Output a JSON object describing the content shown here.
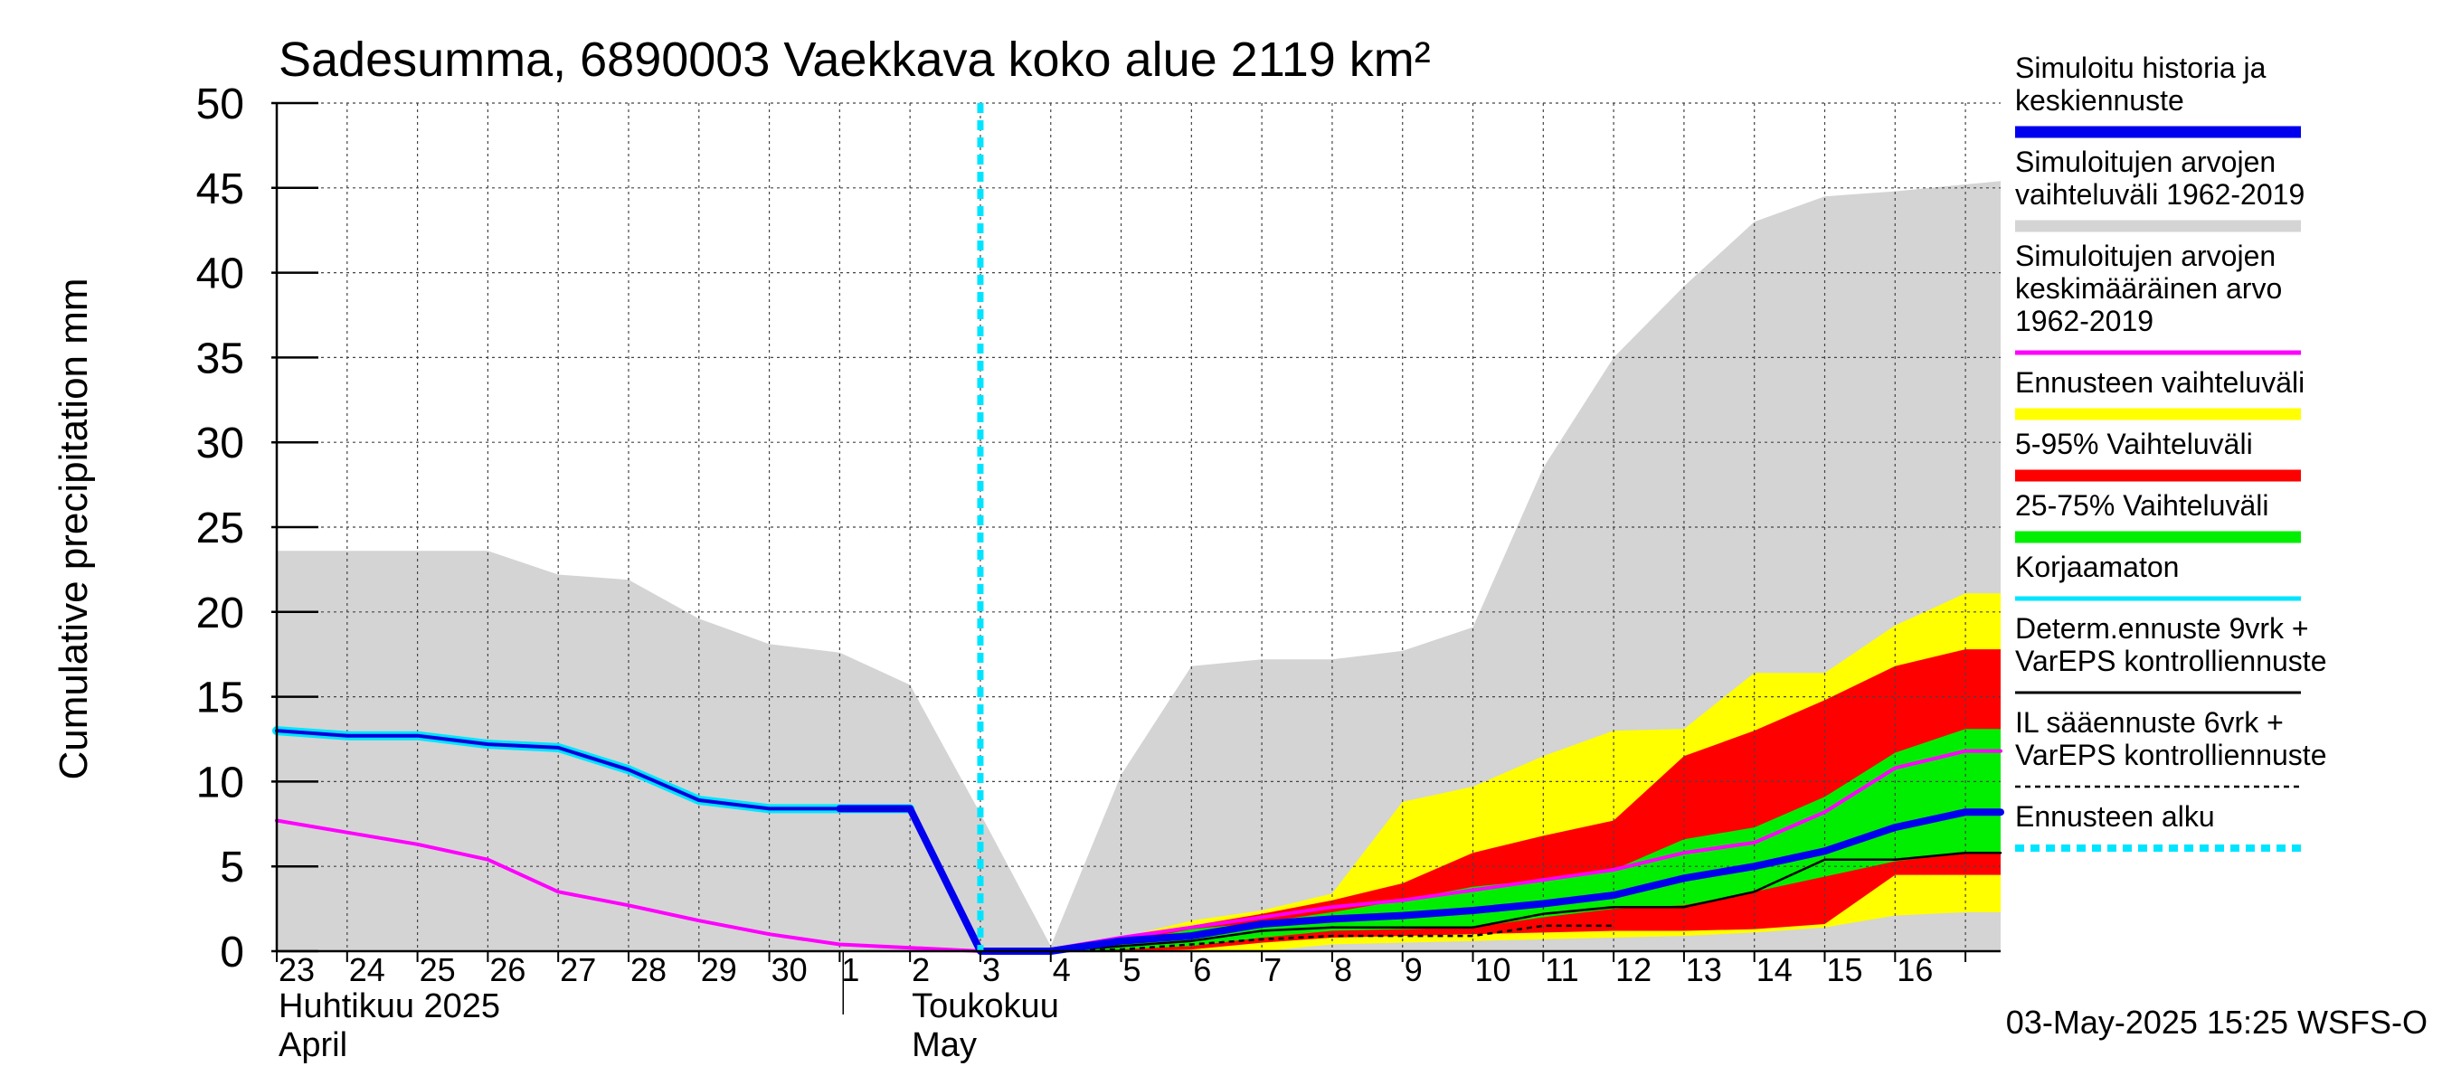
{
  "chart_data": {
    "type": "area",
    "title": "Sadesumma, 6890003 Vaekkava koko alue 2119 km²",
    "ylabel": "Cumulative precipitation   mm",
    "ylim": [
      0,
      50
    ],
    "yticks": [
      0,
      5,
      10,
      15,
      20,
      25,
      30,
      35,
      40,
      45,
      50
    ],
    "xlim": [
      0,
      24.5
    ],
    "x_tick_labels": [
      "23",
      "24",
      "25",
      "26",
      "27",
      "28",
      "29",
      "30",
      "1",
      "2",
      "3",
      "4",
      "5",
      "6",
      "7",
      "8",
      "9",
      "10",
      "11",
      "12",
      "13",
      "14",
      "15",
      "16"
    ],
    "month_labels": [
      {
        "text": "Huhtikuu  2025",
        "x": 0
      },
      {
        "text": "April",
        "x": 0
      },
      {
        "text": "Toukokuu",
        "x": 9
      },
      {
        "text": "May",
        "x": 9
      }
    ],
    "forecast_start_x": 10,
    "grid": true,
    "legend_position": "right",
    "footer": "03-May-2025 15:25 WSFS-O",
    "series": [
      {
        "name": "Simuloitujen arvojen vaihteluväli 1962-2019",
        "kind": "band",
        "color": "#d4d4d4",
        "x": [
          0,
          2,
          3,
          4,
          5,
          6,
          7,
          8,
          9,
          10,
          11,
          12,
          13,
          14,
          15,
          16,
          17,
          18,
          19,
          20,
          21,
          22,
          23,
          24,
          24.5
        ],
        "upper": [
          23.6,
          23.6,
          23.6,
          22.2,
          21.9,
          19.6,
          18.1,
          17.6,
          15.7,
          8.1,
          0.3,
          10.4,
          16.8,
          17.2,
          17.2,
          17.7,
          19.1,
          28.5,
          35.0,
          39.2,
          43.0,
          44.5,
          44.8,
          45.2,
          45.4
        ],
        "lower": [
          0,
          0,
          0,
          0,
          0,
          0,
          0,
          0,
          0,
          0,
          0,
          0,
          0,
          0,
          0,
          0,
          0,
          0,
          0,
          0,
          0,
          0,
          0,
          0,
          0
        ]
      },
      {
        "name": "Ennusteen vaihteluväli",
        "kind": "band",
        "color": "#ffff00",
        "x": [
          10,
          11,
          12,
          13,
          14,
          15,
          16,
          17,
          18,
          19,
          20,
          21,
          22,
          23,
          24,
          24.5
        ],
        "upper": [
          0,
          0.2,
          0.8,
          1.8,
          2.4,
          3.4,
          8.8,
          9.7,
          11.5,
          13.0,
          13.1,
          16.4,
          16.4,
          19.2,
          21.1,
          21.1
        ],
        "lower": [
          0,
          0,
          0,
          0,
          0,
          0.4,
          0.5,
          0.6,
          0.7,
          0.8,
          0.9,
          1.1,
          1.4,
          2.1,
          2.3,
          2.3
        ]
      },
      {
        "name": "5-95% Vaihteluväli",
        "kind": "band",
        "color": "#ff0000",
        "x": [
          10,
          11,
          12,
          13,
          14,
          15,
          16,
          17,
          18,
          19,
          20,
          21,
          22,
          23,
          24,
          24.5
        ],
        "upper": [
          0,
          0.1,
          0.6,
          1.5,
          2.2,
          3.0,
          4.0,
          5.8,
          6.8,
          7.7,
          11.5,
          13.0,
          14.8,
          16.8,
          17.8,
          17.8
        ],
        "lower": [
          0,
          0,
          0,
          0.1,
          0.5,
          0.8,
          0.9,
          1.0,
          1.1,
          1.2,
          1.2,
          1.3,
          1.6,
          4.5,
          4.5,
          4.5
        ]
      },
      {
        "name": "25-75% Vaihteluväli",
        "kind": "band",
        "color": "#00ee00",
        "x": [
          10,
          11,
          12,
          13,
          14,
          15,
          16,
          17,
          18,
          19,
          20,
          21,
          22,
          23,
          24,
          24.5
        ],
        "upper": [
          0,
          0.1,
          0.5,
          1.3,
          1.7,
          2.3,
          3.0,
          3.8,
          4.2,
          4.8,
          6.6,
          7.3,
          9.1,
          11.7,
          13.1,
          13.1
        ],
        "lower": [
          0,
          0,
          0.1,
          0.3,
          0.8,
          1.2,
          1.3,
          1.4,
          2.0,
          2.5,
          2.7,
          3.5,
          4.4,
          5.3,
          5.8,
          5.8
        ]
      },
      {
        "name": "Simuloitujen arvojen keskimääräinen arvo 1962-2019",
        "kind": "line",
        "color": "#ff00ff",
        "width": 4,
        "x": [
          0,
          1,
          2,
          3,
          4,
          5,
          6,
          7,
          8,
          9,
          10,
          11,
          12,
          13,
          14,
          15,
          16,
          17,
          18,
          19,
          20,
          21,
          22,
          23,
          24,
          24.5
        ],
        "y": [
          7.7,
          7.0,
          6.3,
          5.4,
          3.5,
          2.7,
          1.8,
          1.0,
          0.4,
          0.2,
          0,
          0.1,
          0.8,
          1.4,
          2.0,
          2.6,
          3.0,
          3.6,
          4.2,
          4.8,
          5.8,
          6.4,
          8.2,
          10.8,
          11.8,
          11.8
        ]
      },
      {
        "name": "Determ.ennuste 9vrk + VarEPS kontrolliennuste",
        "kind": "line",
        "color": "#000000",
        "width": 2.5,
        "x": [
          10,
          11,
          12,
          13,
          14,
          15,
          16,
          17,
          18,
          19,
          20,
          21,
          22,
          23,
          24,
          24.5
        ],
        "y": [
          0,
          0,
          0.3,
          0.6,
          1.2,
          1.4,
          1.4,
          1.4,
          2.2,
          2.6,
          2.6,
          3.5,
          5.4,
          5.4,
          5.8,
          5.8
        ]
      },
      {
        "name": "IL sääennuste 6vrk  +  VarEPS kontrolliennuste",
        "kind": "line",
        "color": "#000000",
        "width": 2.5,
        "dash": "6,5",
        "x": [
          10,
          11,
          12,
          13,
          14,
          15,
          16,
          17,
          18,
          19
        ],
        "y": [
          0,
          0,
          0.1,
          0.4,
          0.7,
          0.9,
          0.9,
          0.9,
          1.5,
          1.5
        ]
      },
      {
        "name": "Korjaamaton",
        "kind": "line",
        "color": "#00e5ff",
        "width": 10,
        "x": [
          0,
          1,
          2,
          3,
          4,
          5,
          6,
          7,
          8,
          9
        ],
        "y": [
          13.0,
          12.7,
          12.7,
          12.2,
          12.0,
          10.7,
          8.9,
          8.4,
          8.4,
          8.4
        ]
      },
      {
        "name": "Simuloitu historia ja keskiennuste",
        "kind": "line",
        "color": "#0000ee",
        "width": 4,
        "x": [
          0,
          1,
          2,
          3,
          4,
          5,
          6,
          7,
          8,
          9
        ],
        "y": [
          13.0,
          12.7,
          12.7,
          12.2,
          12.0,
          10.7,
          8.9,
          8.4,
          8.4,
          8.4
        ]
      },
      {
        "name": "Simuloitu historia ja keskiennuste",
        "kind": "line",
        "color": "#0000ee",
        "width": 8,
        "x": [
          8,
          9,
          10,
          11,
          12,
          13,
          14,
          15,
          16,
          17,
          18,
          19,
          20,
          21,
          22,
          23,
          24,
          24.5
        ],
        "y": [
          8.4,
          8.4,
          0,
          0,
          0.6,
          0.9,
          1.6,
          1.9,
          2.1,
          2.4,
          2.8,
          3.3,
          4.3,
          5.0,
          5.9,
          7.3,
          8.2,
          8.2
        ]
      }
    ],
    "legend": [
      {
        "lines": [
          "Simuloitu historia ja",
          "keskiennuste"
        ],
        "color": "#0000ee",
        "style": "thick"
      },
      {
        "lines": [
          "Simuloitujen arvojen",
          "vaihteluväli 1962-2019"
        ],
        "color": "#d4d4d4",
        "style": "thick"
      },
      {
        "lines": [
          "Simuloitujen arvojen",
          "keskimääräinen arvo",
          "   1962-2019"
        ],
        "color": "#ff00ff",
        "style": "medium"
      },
      {
        "lines": [
          "Ennusteen vaihteluväli"
        ],
        "color": "#ffff00",
        "style": "thick"
      },
      {
        "lines": [
          "5-95% Vaihteluväli"
        ],
        "color": "#ff0000",
        "style": "thick"
      },
      {
        "lines": [
          "25-75% Vaihteluväli"
        ],
        "color": "#00ee00",
        "style": "thick"
      },
      {
        "lines": [
          "Korjaamaton"
        ],
        "color": "#00e5ff",
        "style": "medium"
      },
      {
        "lines": [
          "Determ.ennuste 9vrk +",
          "VarEPS kontrolliennuste"
        ],
        "color": "#000000",
        "style": "thin"
      },
      {
        "lines": [
          "IL sääennuste 6vrk  +",
          "  VarEPS kontrolliennuste"
        ],
        "color": "#000000",
        "style": "dashed"
      },
      {
        "lines": [
          "Ennusteen alku"
        ],
        "color": "#00e5ff",
        "style": "dotted"
      }
    ]
  }
}
